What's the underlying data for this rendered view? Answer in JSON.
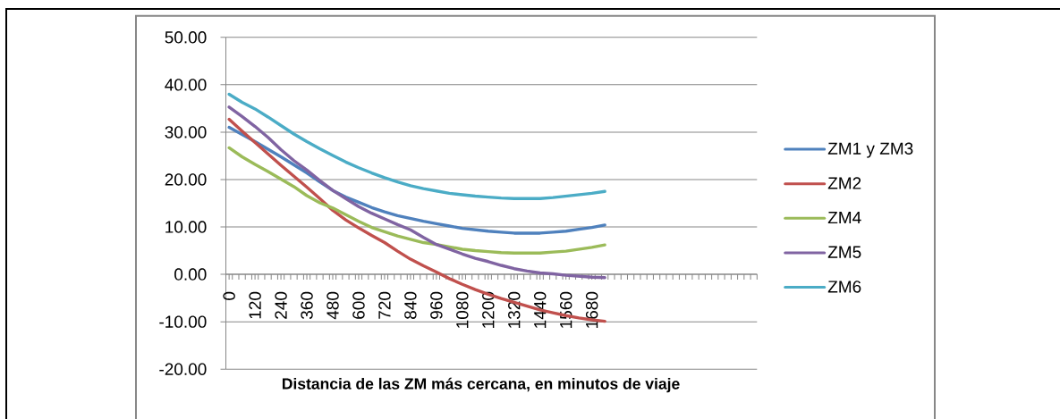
{
  "chart_data": {
    "type": "line",
    "xlabel": "Distancia de las ZM más cercana, en minutos de viaje",
    "x": [
      0,
      60,
      120,
      180,
      240,
      300,
      360,
      420,
      480,
      540,
      600,
      660,
      720,
      780,
      840,
      900,
      960,
      1020,
      1080,
      1140,
      1200,
      1260,
      1320,
      1380,
      1440,
      1500,
      1560,
      1620,
      1680,
      1740
    ],
    "xlim": [
      -15,
      2445
    ],
    "xticks": [
      0,
      120,
      240,
      360,
      480,
      600,
      720,
      840,
      960,
      1080,
      1200,
      1320,
      1440,
      1560,
      1680,
      {
        "value": -15,
        "label": null
      },
      {
        "value": 15,
        "label": null
      },
      {
        "value": 45,
        "label": null
      },
      {
        "value": 75,
        "label": null
      },
      {
        "value": 105,
        "label": null
      },
      {
        "value": 135,
        "label": null
      },
      {
        "value": 165,
        "label": null
      },
      {
        "value": 195,
        "label": null
      },
      {
        "value": 225,
        "label": null
      },
      {
        "value": 255,
        "label": null
      },
      {
        "value": 285,
        "label": null
      },
      {
        "value": 315,
        "label": null
      },
      {
        "value": 345,
        "label": null
      },
      {
        "value": 375,
        "label": null
      },
      {
        "value": 405,
        "label": null
      },
      {
        "value": 435,
        "label": null
      },
      {
        "value": 465,
        "label": null
      },
      {
        "value": 495,
        "label": null
      },
      {
        "value": 525,
        "label": null
      },
      {
        "value": 555,
        "label": null
      },
      {
        "value": 585,
        "label": null
      },
      {
        "value": 615,
        "label": null
      },
      {
        "value": 645,
        "label": null
      },
      {
        "value": 675,
        "label": null
      },
      {
        "value": 705,
        "label": null
      },
      {
        "value": 735,
        "label": null
      },
      {
        "value": 765,
        "label": null
      },
      {
        "value": 795,
        "label": null
      },
      {
        "value": 825,
        "label": null
      },
      {
        "value": 855,
        "label": null
      },
      {
        "value": 885,
        "label": null
      },
      {
        "value": 915,
        "label": null
      },
      {
        "value": 945,
        "label": null
      },
      {
        "value": 975,
        "label": null
      },
      {
        "value": 1005,
        "label": null
      },
      {
        "value": 1035,
        "label": null
      },
      {
        "value": 1065,
        "label": null
      },
      {
        "value": 1095,
        "label": null
      },
      {
        "value": 1125,
        "label": null
      },
      {
        "value": 1155,
        "label": null
      },
      {
        "value": 1185,
        "label": null
      },
      {
        "value": 1215,
        "label": null
      },
      {
        "value": 1245,
        "label": null
      },
      {
        "value": 1275,
        "label": null
      },
      {
        "value": 1305,
        "label": null
      },
      {
        "value": 1335,
        "label": null
      },
      {
        "value": 1365,
        "label": null
      },
      {
        "value": 1395,
        "label": null
      },
      {
        "value": 1425,
        "label": null
      },
      {
        "value": 1455,
        "label": null
      },
      {
        "value": 1485,
        "label": null
      },
      {
        "value": 1515,
        "label": null
      },
      {
        "value": 1545,
        "label": null
      },
      {
        "value": 1575,
        "label": null
      },
      {
        "value": 1605,
        "label": null
      },
      {
        "value": 1635,
        "label": null
      },
      {
        "value": 1665,
        "label": null
      },
      {
        "value": 1695,
        "label": null
      },
      {
        "value": 1725,
        "label": null
      },
      {
        "value": 1755,
        "label": null
      },
      {
        "value": 1785,
        "label": null
      },
      {
        "value": 1815,
        "label": null
      },
      {
        "value": 1845,
        "label": null
      },
      {
        "value": 1875,
        "label": null
      },
      {
        "value": 1905,
        "label": null
      },
      {
        "value": 1935,
        "label": null
      },
      {
        "value": 1965,
        "label": null
      },
      {
        "value": 1995,
        "label": null
      },
      {
        "value": 2025,
        "label": null
      },
      {
        "value": 2055,
        "label": null
      },
      {
        "value": 2085,
        "label": null
      },
      {
        "value": 2115,
        "label": null
      },
      {
        "value": 2145,
        "label": null
      },
      {
        "value": 2175,
        "label": null
      },
      {
        "value": 2205,
        "label": null
      },
      {
        "value": 2235,
        "label": null
      },
      {
        "value": 2265,
        "label": null
      },
      {
        "value": 2295,
        "label": null
      },
      {
        "value": 2325,
        "label": null
      },
      {
        "value": 2355,
        "label": null
      },
      {
        "value": 2385,
        "label": null
      },
      {
        "value": 2415,
        "label": null
      },
      {
        "value": 2445,
        "label": null
      }
    ],
    "ylim": [
      -20,
      50
    ],
    "yticks": [
      {
        "value": -20,
        "label": "-20.00"
      },
      {
        "value": -10,
        "label": "-10.00"
      },
      {
        "value": 0,
        "label": "0.00"
      },
      {
        "value": 10,
        "label": "10.00"
      },
      {
        "value": 20,
        "label": "20.00"
      },
      {
        "value": 30,
        "label": "30.00"
      },
      {
        "value": 40,
        "label": "40.00"
      },
      {
        "value": 50,
        "label": "50.00"
      }
    ],
    "grid": "y",
    "legend": "right",
    "series": [
      {
        "name": "ZM1 y ZM3",
        "color": "#4f81bd",
        "values": [
          31.0,
          29.5,
          28.0,
          26.4,
          24.8,
          23.1,
          21.4,
          19.5,
          17.7,
          16.3,
          15.2,
          14.1,
          13.2,
          12.4,
          11.8,
          11.2,
          10.7,
          10.2,
          9.7,
          9.4,
          9.1,
          8.9,
          8.7,
          8.7,
          8.7,
          8.9,
          9.1,
          9.5,
          9.9,
          10.4
        ]
      },
      {
        "name": "ZM2",
        "color": "#c0504d",
        "values": [
          32.7,
          30.2,
          27.8,
          25.4,
          23.0,
          20.7,
          18.4,
          16.0,
          13.5,
          11.5,
          9.8,
          8.2,
          6.7,
          4.9,
          3.2,
          1.8,
          0.5,
          -0.9,
          -2.1,
          -3.2,
          -4.2,
          -5.1,
          -5.9,
          -6.7,
          -7.5,
          -8.1,
          -8.7,
          -9.2,
          -9.6,
          -9.9
        ]
      },
      {
        "name": "ZM4",
        "color": "#9bbb59",
        "values": [
          26.7,
          24.8,
          23.2,
          21.7,
          20.1,
          18.5,
          16.6,
          15.1,
          14.0,
          12.6,
          11.2,
          9.9,
          9.0,
          8.1,
          7.4,
          6.7,
          6.3,
          5.8,
          5.3,
          5.0,
          4.8,
          4.6,
          4.5,
          4.5,
          4.5,
          4.7,
          4.9,
          5.3,
          5.7,
          6.2
        ]
      },
      {
        "name": "ZM5",
        "color": "#8064a2",
        "values": [
          35.3,
          33.3,
          31.2,
          28.9,
          26.3,
          24.0,
          22.0,
          19.8,
          17.7,
          16.0,
          14.3,
          12.9,
          11.7,
          10.5,
          9.4,
          7.8,
          6.3,
          5.3,
          4.3,
          3.4,
          2.7,
          1.9,
          1.2,
          0.7,
          0.3,
          0.1,
          -0.2,
          -0.4,
          -0.6,
          -0.7
        ]
      },
      {
        "name": "ZM6",
        "color": "#4bacc6",
        "values": [
          38.0,
          36.3,
          34.9,
          33.2,
          31.4,
          29.6,
          28.0,
          26.5,
          25.1,
          23.7,
          22.5,
          21.4,
          20.4,
          19.5,
          18.7,
          18.1,
          17.6,
          17.1,
          16.8,
          16.5,
          16.3,
          16.1,
          16.0,
          16.0,
          16.0,
          16.2,
          16.5,
          16.8,
          17.1,
          17.5
        ]
      }
    ]
  }
}
